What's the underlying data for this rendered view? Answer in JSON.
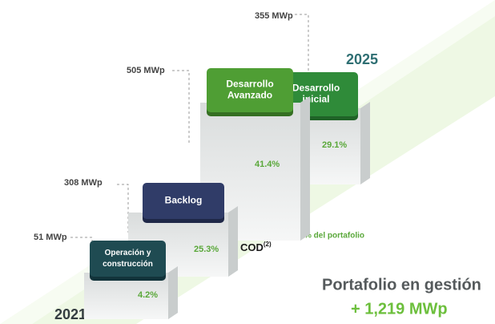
{
  "years": [
    "2021",
    "2025"
  ],
  "blocks": [
    {
      "title": [
        "Operación y",
        "construcción"
      ],
      "capacity": "51 MWp",
      "share": "4.2%"
    },
    {
      "title": [
        "Backlog"
      ],
      "capacity": "308 MWp",
      "share": "25.3%"
    },
    {
      "title": [
        "Desarrollo",
        "Avanzado"
      ],
      "capacity": "505 MWp",
      "share": "41.4%"
    },
    {
      "title": [
        "Desarrollo",
        "inicial"
      ],
      "capacity": "355 MWp",
      "share": "29.1%"
    }
  ],
  "cod_label": "COD",
  "cod_note": "(2)",
  "share_caption": "% del portafolio",
  "total": {
    "title": "Portafolio en gestión",
    "value": "+ 1,219 MWp"
  }
}
